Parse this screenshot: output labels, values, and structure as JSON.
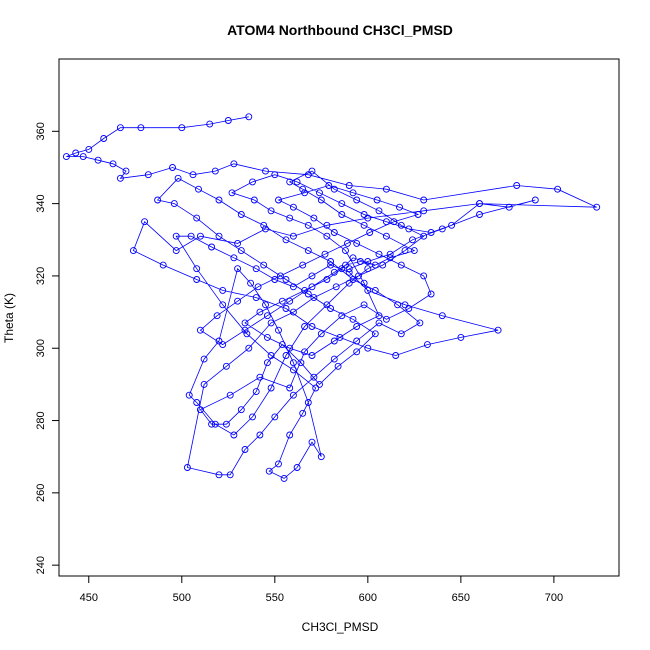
{
  "chart_data": {
    "type": "scatter",
    "title": "ATOM4 Northbound CH3Cl_PMSD",
    "xlabel": "CH3Cl_PMSD",
    "ylabel": "Theta (K)",
    "xlim": [
      434,
      735
    ],
    "ylim": [
      237,
      380
    ],
    "xticks": [
      450,
      500,
      550,
      600,
      650,
      700
    ],
    "yticks": [
      240,
      260,
      280,
      300,
      320,
      340,
      360
    ],
    "grid": false,
    "legend": "none",
    "series_color": "#0000ff",
    "marker": "open-circle",
    "connect_points": true,
    "series": [
      {
        "points": [
          [
            536,
            364
          ],
          [
            525,
            363
          ],
          [
            515,
            362
          ],
          [
            500,
            361
          ],
          [
            478,
            361
          ],
          [
            467,
            361
          ],
          [
            458,
            358
          ],
          [
            450,
            355
          ],
          [
            443,
            354
          ],
          [
            438,
            353
          ],
          [
            447,
            353
          ],
          [
            455,
            352
          ],
          [
            463,
            351
          ],
          [
            470,
            349
          ],
          [
            467,
            347
          ],
          [
            482,
            348
          ],
          [
            495,
            350
          ],
          [
            506,
            348
          ],
          [
            518,
            349
          ],
          [
            528,
            351
          ],
          [
            545,
            349
          ],
          [
            568,
            348
          ],
          [
            590,
            345
          ],
          [
            610,
            344
          ],
          [
            630,
            341
          ],
          [
            680,
            345
          ],
          [
            702,
            344
          ],
          [
            723,
            339
          ],
          [
            660,
            340
          ],
          [
            630,
            338
          ],
          [
            600,
            336
          ],
          [
            578,
            334
          ],
          [
            560,
            331
          ],
          [
            545,
            333
          ],
          [
            530,
            329
          ],
          [
            510,
            331
          ],
          [
            497,
            327
          ],
          [
            480,
            335
          ],
          [
            474,
            327
          ],
          [
            490,
            323
          ],
          [
            508,
            319
          ],
          [
            522,
            316
          ],
          [
            540,
            314
          ],
          [
            556,
            311
          ],
          [
            570,
            306
          ],
          [
            585,
            303
          ],
          [
            600,
            300
          ],
          [
            615,
            298
          ],
          [
            632,
            301
          ],
          [
            650,
            303
          ],
          [
            670,
            305
          ],
          [
            640,
            309
          ],
          [
            620,
            312
          ],
          [
            600,
            316
          ],
          [
            590,
            321
          ],
          [
            580,
            323
          ],
          [
            570,
            320
          ],
          [
            560,
            317
          ],
          [
            550,
            319
          ],
          [
            540,
            322
          ],
          [
            528,
            325
          ],
          [
            516,
            328
          ],
          [
            505,
            331
          ],
          [
            497,
            331
          ],
          [
            508,
            322
          ],
          [
            522,
            312
          ],
          [
            535,
            304
          ],
          [
            548,
            298
          ],
          [
            560,
            294
          ],
          [
            572,
            289
          ],
          [
            565,
            282
          ],
          [
            558,
            276
          ],
          [
            552,
            268
          ],
          [
            547,
            266
          ],
          [
            555,
            264
          ],
          [
            562,
            267
          ],
          [
            570,
            274
          ],
          [
            575,
            270
          ],
          [
            568,
            285
          ],
          [
            560,
            296
          ],
          [
            552,
            305
          ],
          [
            545,
            312
          ],
          [
            537,
            318
          ],
          [
            530,
            322
          ],
          [
            520,
            302
          ],
          [
            512,
            297
          ],
          [
            504,
            287
          ],
          [
            508,
            285
          ],
          [
            518,
            279
          ],
          [
            528,
            276
          ],
          [
            538,
            281
          ],
          [
            548,
            289
          ],
          [
            556,
            298
          ],
          [
            566,
            306
          ],
          [
            578,
            312
          ],
          [
            590,
            318
          ],
          [
            600,
            322
          ],
          [
            612,
            325
          ],
          [
            625,
            327
          ],
          [
            610,
            331
          ],
          [
            598,
            334
          ],
          [
            586,
            337
          ],
          [
            575,
            341
          ],
          [
            565,
            344
          ],
          [
            558,
            346
          ],
          [
            570,
            349
          ],
          [
            582,
            344
          ],
          [
            594,
            341
          ],
          [
            606,
            338
          ],
          [
            618,
            334
          ],
          [
            630,
            331
          ],
          [
            620,
            327
          ],
          [
            608,
            323
          ],
          [
            595,
            320
          ],
          [
            583,
            317
          ],
          [
            571,
            314
          ],
          [
            560,
            310
          ],
          [
            548,
            307
          ],
          [
            536,
            300
          ],
          [
            524,
            295
          ],
          [
            512,
            290
          ],
          [
            503,
            267
          ],
          [
            520,
            265
          ],
          [
            526,
            265
          ],
          [
            534,
            272
          ],
          [
            542,
            276
          ],
          [
            550,
            281
          ],
          [
            560,
            287
          ],
          [
            571,
            292
          ],
          [
            582,
            297
          ],
          [
            594,
            302
          ],
          [
            606,
            307
          ],
          [
            618,
            304
          ],
          [
            628,
            307
          ],
          [
            616,
            312
          ],
          [
            604,
            316
          ],
          [
            592,
            319
          ],
          [
            580,
            324
          ],
          [
            568,
            327
          ],
          [
            556,
            330
          ],
          [
            544,
            334
          ],
          [
            532,
            337
          ],
          [
            520,
            341
          ],
          [
            509,
            344
          ],
          [
            498,
            347
          ],
          [
            487,
            341
          ],
          [
            496,
            340
          ],
          [
            508,
            336
          ],
          [
            520,
            331
          ],
          [
            532,
            327
          ],
          [
            544,
            323
          ],
          [
            556,
            319
          ],
          [
            568,
            315
          ],
          [
            580,
            311
          ],
          [
            592,
            308
          ],
          [
            604,
            304
          ],
          [
            594,
            299
          ],
          [
            584,
            295
          ],
          [
            574,
            290
          ],
          [
            564,
            296
          ],
          [
            554,
            301
          ],
          [
            546,
            296
          ],
          [
            540,
            288
          ],
          [
            532,
            283
          ],
          [
            524,
            279
          ],
          [
            516,
            279
          ],
          [
            510,
            283
          ],
          [
            526,
            287
          ],
          [
            542,
            292
          ],
          [
            558,
            289
          ],
          [
            566,
            299
          ],
          [
            575,
            304
          ],
          [
            586,
            309
          ],
          [
            598,
            312
          ],
          [
            610,
            308
          ],
          [
            622,
            311
          ],
          [
            634,
            315
          ],
          [
            630,
            320
          ],
          [
            618,
            323
          ],
          [
            606,
            326
          ],
          [
            594,
            329
          ],
          [
            582,
            332
          ],
          [
            571,
            336
          ],
          [
            560,
            339
          ],
          [
            552,
            341
          ],
          [
            566,
            343
          ],
          [
            579,
            345
          ],
          [
            592,
            343
          ],
          [
            605,
            341
          ],
          [
            617,
            339
          ],
          [
            627,
            337
          ],
          [
            614,
            335
          ],
          [
            601,
            332
          ],
          [
            589,
            329
          ],
          [
            577,
            326
          ],
          [
            565,
            323
          ],
          [
            553,
            320
          ],
          [
            541,
            317
          ],
          [
            530,
            313
          ],
          [
            519,
            309
          ],
          [
            510,
            305
          ],
          [
            522,
            301
          ],
          [
            534,
            305
          ],
          [
            546,
            309
          ],
          [
            558,
            313
          ],
          [
            570,
            317
          ],
          [
            582,
            321
          ],
          [
            588,
            323
          ],
          [
            596,
            324
          ],
          [
            604,
            323
          ],
          [
            592,
            325
          ],
          [
            586,
            322
          ],
          [
            578,
            319
          ],
          [
            566,
            316
          ],
          [
            554,
            313
          ],
          [
            542,
            310
          ],
          [
            534,
            307
          ],
          [
            546,
            303
          ],
          [
            558,
            300
          ],
          [
            570,
            298
          ],
          [
            582,
            302
          ],
          [
            594,
            306
          ],
          [
            606,
            309
          ],
          [
            598,
            318
          ],
          [
            588,
            327
          ],
          [
            578,
            331
          ],
          [
            568,
            334
          ],
          [
            558,
            336
          ],
          [
            548,
            338
          ],
          [
            539,
            341
          ],
          [
            527,
            343
          ],
          [
            538,
            346
          ],
          [
            550,
            348
          ],
          [
            562,
            346
          ],
          [
            574,
            343
          ],
          [
            586,
            340
          ],
          [
            598,
            337
          ],
          [
            610,
            335
          ],
          [
            622,
            333
          ],
          [
            634,
            332
          ],
          [
            645,
            334
          ],
          [
            660,
            340
          ],
          [
            676,
            339
          ],
          [
            690,
            341
          ],
          [
            660,
            337
          ],
          [
            640,
            333
          ],
          [
            624,
            330
          ],
          [
            612,
            326
          ],
          [
            600,
            324
          ],
          [
            590,
            322
          ]
        ]
      }
    ]
  }
}
